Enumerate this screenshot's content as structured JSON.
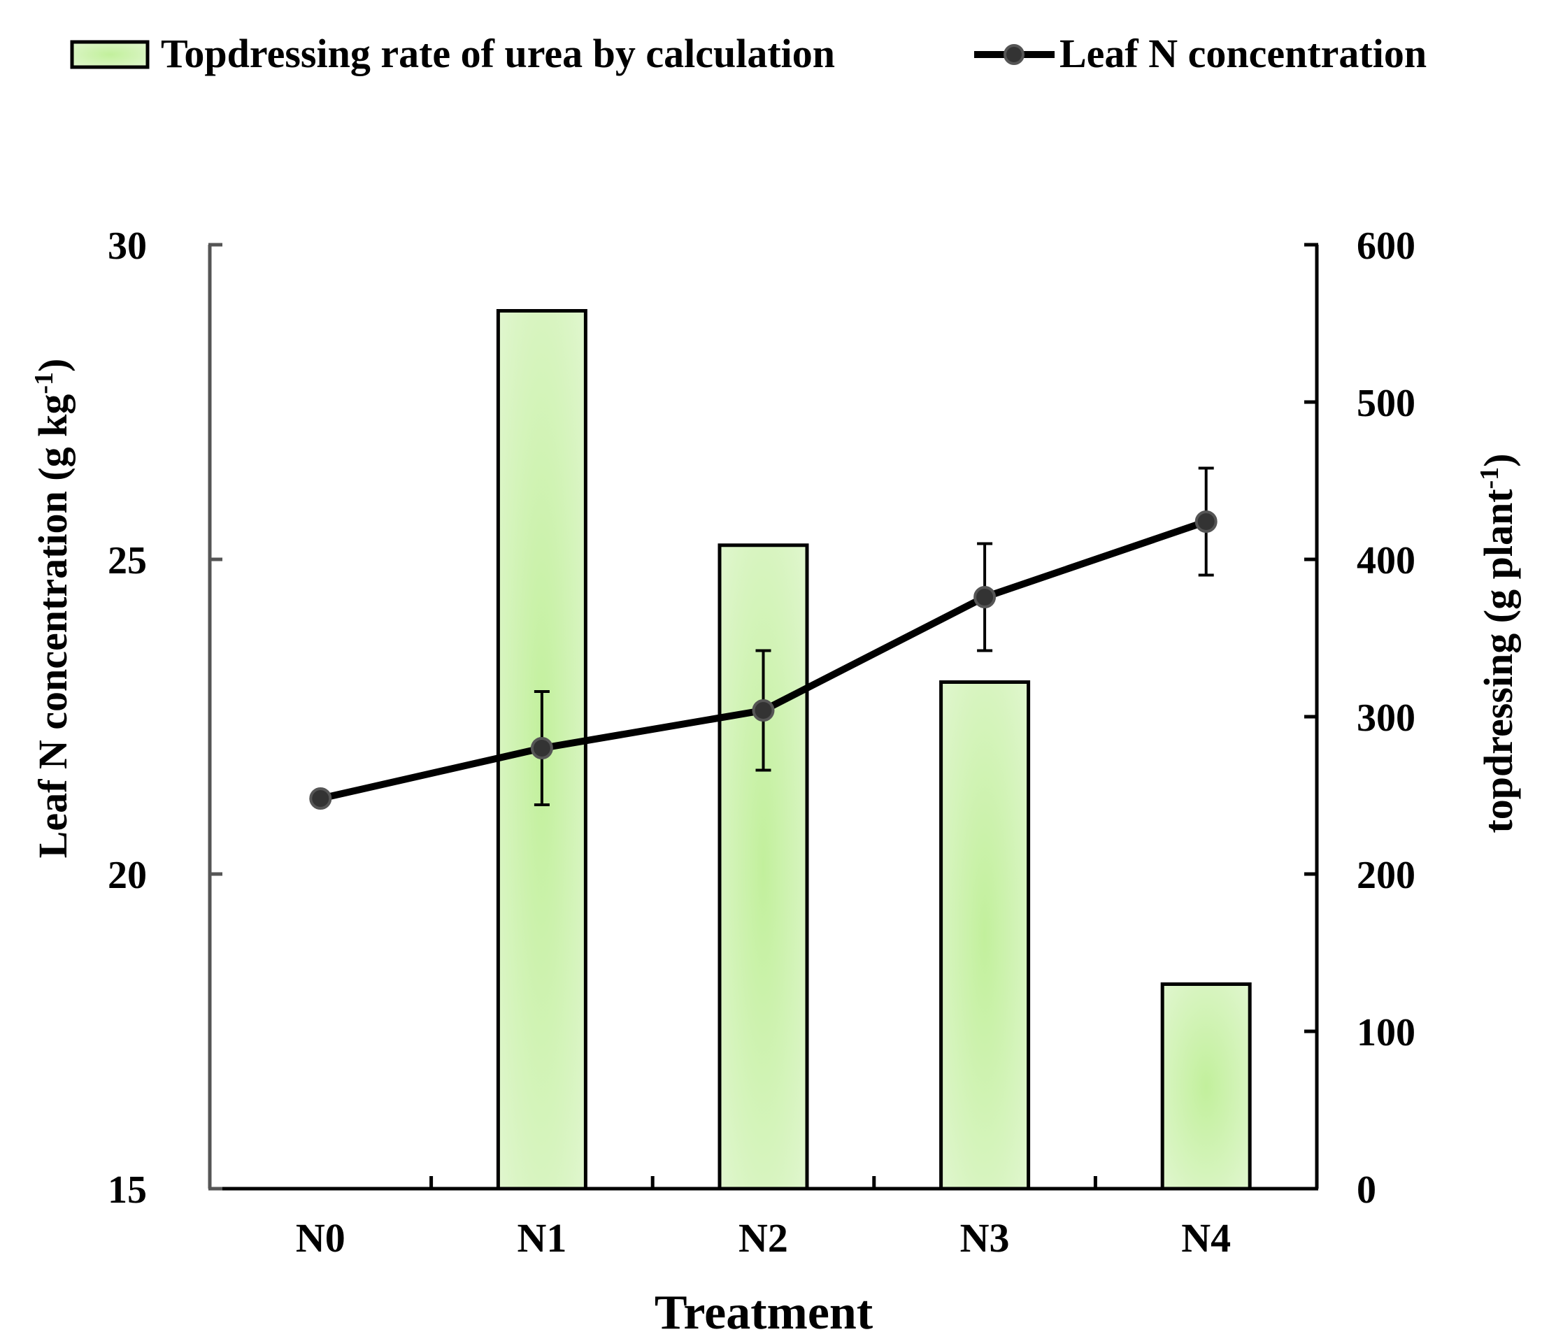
{
  "chart_data": {
    "type": "bar+line",
    "categories": [
      "N0",
      "N1",
      "N2",
      "N3",
      "N4"
    ],
    "xlabel": "Treatment",
    "left_axis": {
      "label": "Leaf N concentration (g kg",
      "label_sup": "-1",
      "label_close": ")",
      "ylim": [
        15,
        30
      ],
      "ticks": [
        15,
        20,
        25,
        30
      ]
    },
    "right_axis": {
      "label": "topdressing (g plant",
      "label_sup": "-1",
      "label_close": ")",
      "ylim": [
        0,
        600
      ],
      "ticks": [
        0,
        100,
        200,
        300,
        400,
        500,
        600
      ]
    },
    "bar_series": {
      "name": "Topdressing rate of urea by calculation",
      "axis": "right",
      "values": [
        0,
        558,
        409,
        322,
        130
      ]
    },
    "line_series": {
      "name": "Leaf N concentration",
      "axis": "left",
      "values": [
        21.2,
        22.0,
        22.6,
        24.4,
        25.6
      ],
      "errors": [
        0.1,
        0.9,
        0.95,
        0.85,
        0.85
      ]
    },
    "colors": {
      "bar_light": "#e9f8dd",
      "bar_dark": "#c2f09c",
      "bar_edge": "#000000",
      "line": "#000000",
      "marker": "#333333"
    }
  }
}
